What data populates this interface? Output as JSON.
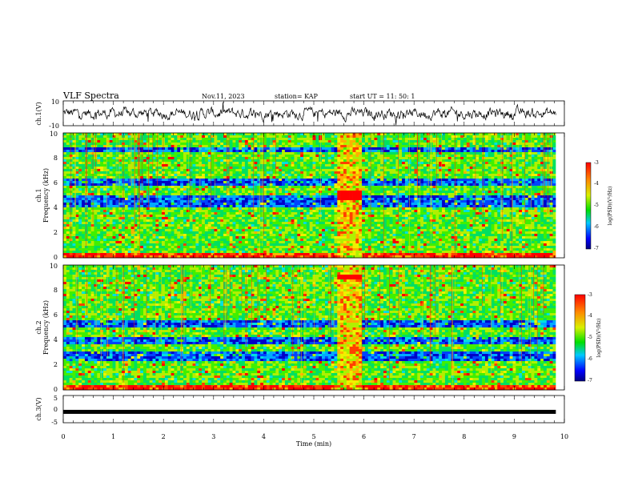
{
  "header": {
    "title": "VLF Spectra",
    "date": "Nov.11, 2023",
    "station": "station= KAP",
    "start_ut": "start  UT =   11: 50: 1"
  },
  "chart_data": [
    {
      "type": "line",
      "name": "ch1-waveform",
      "ylabel": "ch.1(V)",
      "ylim": [
        -10,
        10
      ],
      "yticks": [
        "10",
        "-10"
      ],
      "x_range_min": [
        0,
        9.83
      ],
      "description_values": "noisy signal roughly between -7 and 5 V around 0"
    },
    {
      "type": "heatmap",
      "name": "ch1-spectrogram",
      "ylabel": "ch.1\nFrequency (kHz)",
      "ylim": [
        0,
        10
      ],
      "yticks": [
        "0",
        "2",
        "4",
        "6",
        "8",
        "10"
      ],
      "colorbar": {
        "label": "log(PSD)(V²/Hz)",
        "range": [
          -7,
          -3
        ],
        "ticks": [
          "-3",
          "-4",
          "-5",
          "-6",
          "-7"
        ]
      },
      "features": {
        "red_band_window_min": [
          5.45,
          5.95
        ],
        "red_band_freq_khz": [
          4.6,
          5.3
        ],
        "blue_bands_khz": [
          [
            4.0,
            5.0
          ],
          [
            5.7,
            6.3
          ],
          [
            8.4,
            8.9
          ]
        ]
      }
    },
    {
      "type": "heatmap",
      "name": "ch2-spectrogram",
      "ylabel": "ch.2\nFrequency (kHz)",
      "ylim": [
        0,
        10
      ],
      "yticks": [
        "0",
        "2",
        "4",
        "6",
        "8",
        "10"
      ],
      "colorbar": {
        "label": "log(PSD)(V²/Hz)",
        "range": [
          -7,
          -3
        ],
        "ticks": [
          "-3",
          "-4",
          "-5",
          "-6",
          "-7"
        ]
      },
      "features": {
        "red_band_window_min": [
          5.45,
          5.95
        ],
        "red_band_freq_khz": [
          8.8,
          9.3
        ],
        "blue_bands_khz": [
          [
            3.6,
            4.3
          ],
          [
            2.3,
            3.0
          ],
          [
            5.0,
            5.6
          ]
        ]
      }
    },
    {
      "type": "line",
      "name": "ch3-signal",
      "ylabel": "ch.3(V)",
      "xlabel": "Time (min)",
      "xlim": [
        0,
        10
      ],
      "xticks": [
        "0",
        "1",
        "2",
        "3",
        "4",
        "5",
        "6",
        "7",
        "8",
        "9",
        "10"
      ],
      "ylim": [
        -5,
        5
      ],
      "yticks": [
        "5",
        "0",
        "-5"
      ],
      "values_const": -1.0,
      "x_range_min": [
        0,
        9.83
      ]
    }
  ]
}
